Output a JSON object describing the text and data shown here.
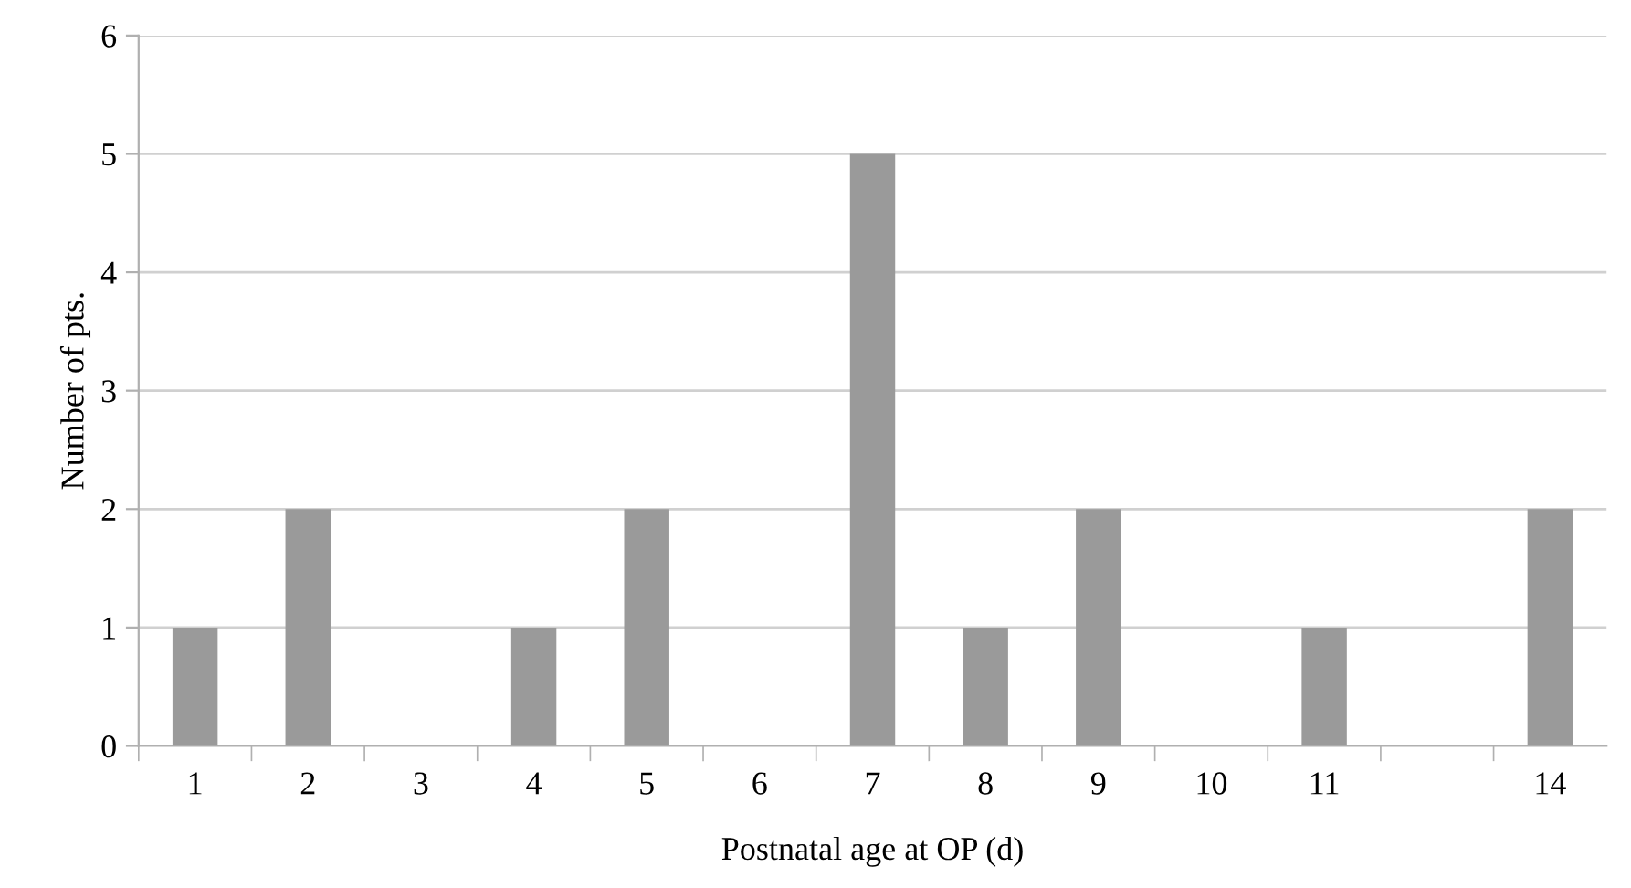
{
  "chart_data": {
    "type": "bar",
    "xlabel": "Postnatal age at OP (d)",
    "ylabel": "Number of pts.",
    "categories": [
      "1",
      "2",
      "3",
      "4",
      "5",
      "6",
      "7",
      "8",
      "9",
      "10",
      "11",
      null,
      "14"
    ],
    "values": [
      1,
      2,
      0,
      1,
      2,
      0,
      5,
      1,
      2,
      0,
      1,
      0,
      2
    ],
    "color": "#9a9a9a",
    "ylim": [
      0,
      6
    ],
    "yticks": [
      0,
      1,
      2,
      3,
      4,
      5,
      6
    ],
    "grid": "y"
  }
}
